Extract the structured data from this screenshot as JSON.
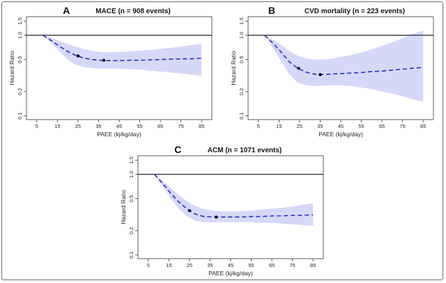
{
  "chart_data": [
    {
      "type": "line",
      "letter": "A",
      "title": "MACE (n = 908 events)",
      "xlabel": "PAEE (kj/kg/day)",
      "ylabel": "Hazard Ratio",
      "xlim": [
        0,
        90
      ],
      "ylim": [
        0.09,
        1.7
      ],
      "y_scale": "log",
      "x_ticks": [
        5,
        15,
        25,
        35,
        45,
        55,
        65,
        75,
        85
      ],
      "y_ticks": [
        0.1,
        0.2,
        0.5,
        1.0,
        1.5
      ],
      "y_tick_labels": [
        "0.1",
        "0.2",
        "0.5",
        "1.0",
        "1.5"
      ],
      "reference_line": 1.0,
      "series": [
        {
          "x": [
            8,
            12,
            16,
            20,
            24,
            28,
            32,
            36,
            40,
            45,
            50,
            55,
            60,
            65,
            70,
            75,
            80,
            85
          ],
          "y": [
            1.0,
            0.86,
            0.73,
            0.63,
            0.56,
            0.52,
            0.5,
            0.49,
            0.485,
            0.485,
            0.49,
            0.49,
            0.495,
            0.5,
            0.505,
            0.51,
            0.51,
            0.52
          ],
          "lower": [
            1.0,
            0.8,
            0.63,
            0.5,
            0.43,
            0.4,
            0.39,
            0.385,
            0.385,
            0.385,
            0.38,
            0.375,
            0.365,
            0.355,
            0.345,
            0.335,
            0.325,
            0.315
          ],
          "upper": [
            1.0,
            0.93,
            0.85,
            0.78,
            0.72,
            0.67,
            0.64,
            0.62,
            0.615,
            0.62,
            0.63,
            0.645,
            0.66,
            0.68,
            0.7,
            0.725,
            0.755,
            0.79
          ]
        }
      ],
      "markers": [
        {
          "x": 25,
          "y": 0.555
        },
        {
          "x": 37.5,
          "y": 0.49
        }
      ],
      "colors": {
        "line": "#1f2fbf",
        "band": "#d6d8f7",
        "reference": "#111111"
      }
    },
    {
      "type": "line",
      "letter": "B",
      "title": "CVD mortality (n = 223 events)",
      "xlabel": "PAEE (kj/kg/day)",
      "ylabel": "Hazard Ratio",
      "xlim": [
        0,
        90
      ],
      "ylim": [
        0.09,
        1.7
      ],
      "y_scale": "log",
      "x_ticks": [
        5,
        15,
        25,
        35,
        45,
        55,
        65,
        75,
        85
      ],
      "y_ticks": [
        0.1,
        0.2,
        0.5,
        1.0,
        1.5
      ],
      "y_tick_labels": [
        "0.1",
        "0.2",
        "0.5",
        "1.0",
        "1.5"
      ],
      "reference_line": 1.0,
      "series": [
        {
          "x": [
            8,
            12,
            16,
            20,
            24,
            28,
            32,
            35,
            40,
            45,
            50,
            55,
            60,
            65,
            70,
            75,
            80,
            85
          ],
          "y": [
            1.0,
            0.8,
            0.62,
            0.47,
            0.39,
            0.35,
            0.33,
            0.325,
            0.33,
            0.335,
            0.34,
            0.345,
            0.355,
            0.36,
            0.37,
            0.38,
            0.39,
            0.4
          ],
          "lower": [
            1.0,
            0.7,
            0.48,
            0.33,
            0.26,
            0.24,
            0.235,
            0.235,
            0.24,
            0.24,
            0.235,
            0.225,
            0.215,
            0.2,
            0.19,
            0.175,
            0.16,
            0.15
          ],
          "upper": [
            1.0,
            0.88,
            0.76,
            0.64,
            0.56,
            0.52,
            0.5,
            0.5,
            0.51,
            0.54,
            0.57,
            0.61,
            0.67,
            0.74,
            0.82,
            0.92,
            1.04,
            1.15
          ]
        }
      ],
      "markers": [
        {
          "x": 24.5,
          "y": 0.39
        },
        {
          "x": 35,
          "y": 0.325
        }
      ],
      "colors": {
        "line": "#1f2fbf",
        "band": "#d6d8f7",
        "reference": "#111111"
      }
    },
    {
      "type": "line",
      "letter": "C",
      "title": "ACM (n = 1071 events)",
      "xlabel": "PAEE (kj/kg/day)",
      "ylabel": "Hazard Ratio",
      "xlim": [
        0,
        90
      ],
      "ylim": [
        0.09,
        1.7
      ],
      "y_scale": "log",
      "x_ticks": [
        5,
        15,
        25,
        35,
        45,
        55,
        65,
        75,
        85
      ],
      "y_ticks": [
        0.1,
        0.2,
        0.5,
        1.0,
        1.5
      ],
      "y_tick_labels": [
        "0.1",
        "0.2",
        "0.5",
        "1.0",
        "1.5"
      ],
      "reference_line": 1.0,
      "series": [
        {
          "x": [
            8,
            12,
            16,
            20,
            24,
            28,
            32,
            38,
            45,
            50,
            55,
            60,
            65,
            70,
            75,
            80,
            85
          ],
          "y": [
            1.0,
            0.77,
            0.58,
            0.45,
            0.37,
            0.32,
            0.3,
            0.295,
            0.295,
            0.295,
            0.3,
            0.3,
            0.305,
            0.305,
            0.31,
            0.31,
            0.315
          ],
          "lower": [
            1.0,
            0.72,
            0.5,
            0.37,
            0.3,
            0.265,
            0.255,
            0.255,
            0.255,
            0.255,
            0.255,
            0.25,
            0.25,
            0.245,
            0.24,
            0.235,
            0.23
          ],
          "upper": [
            1.0,
            0.83,
            0.67,
            0.55,
            0.46,
            0.4,
            0.37,
            0.35,
            0.345,
            0.35,
            0.355,
            0.365,
            0.375,
            0.385,
            0.4,
            0.42,
            0.44
          ]
        }
      ],
      "markers": [
        {
          "x": 25,
          "y": 0.355
        },
        {
          "x": 38,
          "y": 0.295
        }
      ],
      "colors": {
        "line": "#1f2fbf",
        "band": "#d6d8f7",
        "reference": "#111111"
      }
    }
  ]
}
